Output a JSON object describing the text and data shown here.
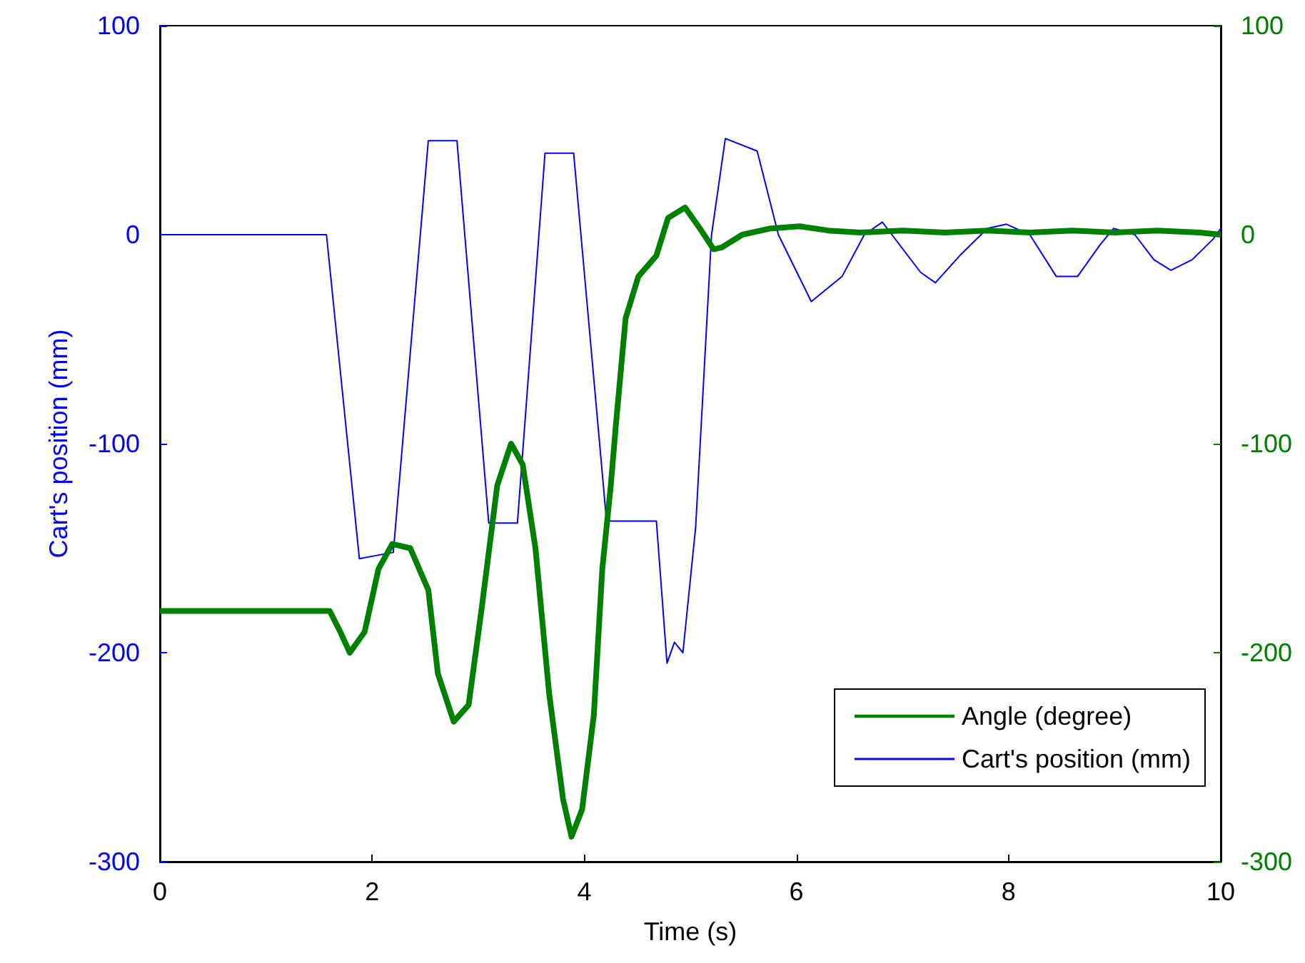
{
  "chart_data": {
    "type": "line",
    "xlabel": "Time (s)",
    "ylabel": "Cart's position (mm)",
    "xlim": [
      0,
      10
    ],
    "xticks": [
      0,
      2,
      4,
      6,
      8,
      10
    ],
    "ylim": [
      -300,
      100
    ],
    "yticks": [
      -300,
      -200,
      -100,
      0,
      100
    ],
    "y2lim": [
      -300,
      100
    ],
    "y2ticks": [
      -300,
      -200,
      -100,
      0,
      100
    ],
    "grid": false,
    "legend": "bottom right",
    "series": [
      {
        "name": "Angle (degree)",
        "color": "#008000",
        "axis": "y2",
        "marker": "none",
        "x": [
          0,
          1.6,
          1.7,
          1.79,
          1.93,
          2.06,
          2.19,
          2.36,
          2.53,
          2.62,
          2.77,
          2.91,
          3.03,
          3.18,
          3.31,
          3.42,
          3.54,
          3.67,
          3.8,
          3.88,
          3.98,
          4.09,
          4.17,
          4.25,
          4.3,
          4.39,
          4.51,
          4.68,
          4.79,
          4.95,
          5.09,
          5.22,
          5.3,
          5.49,
          5.76,
          6.03,
          6.3,
          6.6,
          7.0,
          7.4,
          7.8,
          8.2,
          8.6,
          9.0,
          9.4,
          9.8,
          10
        ],
        "values": [
          -180,
          -180,
          -190,
          -200,
          -190,
          -160,
          -148,
          -150,
          -170,
          -210,
          -233,
          -225,
          -180,
          -120,
          -100,
          -110,
          -150,
          -220,
          -270,
          -288,
          -275,
          -230,
          -160,
          -120,
          -90,
          -40,
          -20,
          -10,
          8,
          13,
          3,
          -7,
          -6,
          0,
          3,
          4,
          2,
          1,
          2,
          1,
          2,
          1,
          2,
          1,
          2,
          1,
          0
        ]
      },
      {
        "name": "Cart's position (mm)",
        "color": "#0000ff",
        "marker": "none",
        "x": [
          0,
          1.57,
          1.88,
          2.2,
          2.53,
          2.8,
          3.1,
          3.37,
          3.63,
          3.9,
          4.21,
          4.68,
          4.78,
          4.85,
          4.93,
          5.05,
          5.2,
          5.33,
          5.63,
          5.83,
          6.14,
          6.43,
          6.64,
          6.81,
          6.9,
          7.17,
          7.31,
          7.54,
          7.8,
          7.98,
          8.2,
          8.45,
          8.65,
          8.86,
          8.99,
          9.19,
          9.37,
          9.53,
          9.73,
          9.93,
          10
        ],
        "values": [
          0,
          0,
          -155,
          -152,
          45,
          45,
          -138,
          -138,
          39,
          39,
          -137,
          -137,
          -205,
          -195,
          -200,
          -140,
          0,
          46,
          40,
          0,
          -32,
          -20,
          0,
          6,
          0,
          -18,
          -23,
          -10,
          3,
          5,
          0,
          -20,
          -20,
          -5,
          3,
          0,
          -12,
          -17,
          -12,
          -2,
          3
        ]
      }
    ]
  }
}
